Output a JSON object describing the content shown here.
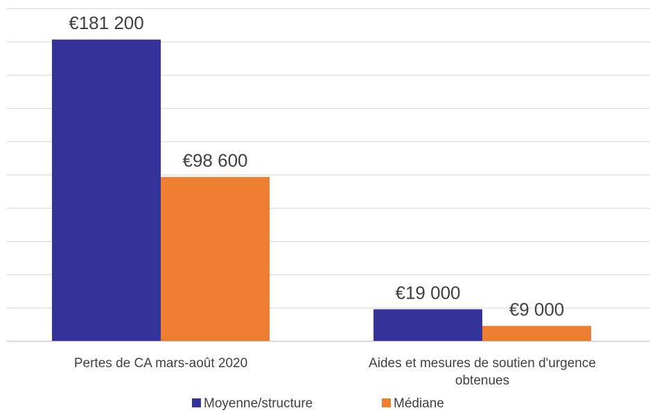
{
  "chart_data": {
    "type": "bar",
    "categories": [
      [
        "Pertes de CA mars-août 2020"
      ],
      [
        "Aides et mesures de soutien d'urgence",
        "obtenues"
      ]
    ],
    "series": [
      {
        "name": "Moyenne/structure",
        "color": "#333399",
        "values": [
          181200,
          19000
        ],
        "labels": [
          "€181 200",
          "€19 000"
        ]
      },
      {
        "name": "Médiane",
        "color": "#ED7D31",
        "values": [
          98600,
          9000
        ],
        "labels": [
          "€98 600",
          "€9 000"
        ]
      }
    ],
    "ylim": [
      0,
      200000
    ],
    "y_grid_step": 20000,
    "grid": true,
    "y_axis_labels_shown": false,
    "legend_position": "bottom"
  }
}
